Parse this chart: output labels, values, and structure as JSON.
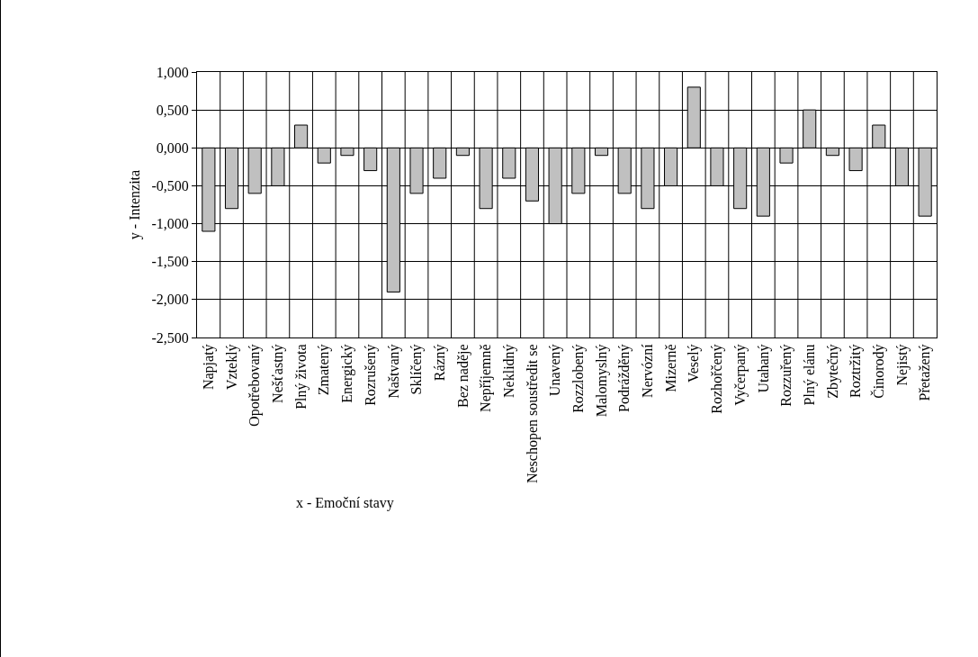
{
  "chart_data": {
    "type": "bar",
    "xlabel": "x - Emoční stavy",
    "ylabel": "y - Intenzita",
    "categories": [
      "Napjatý",
      "Vzteklý",
      "Opotřebovaný",
      "Nešťastný",
      "Plný života",
      "Zmatený",
      "Energický",
      "Rozrušený",
      "Naštvaný",
      "Sklíčený",
      "Rázný",
      "Bez naděje",
      "Nepříjemně",
      "Neklidný",
      "Neschopen soustředit se",
      "Unavený",
      "Rozzlobený",
      "Malomyslný",
      "Podrážděný",
      "Nervózní",
      "Mizerně",
      "Veselý",
      "Rozhořčený",
      "Vyčerpaný",
      "Utahaný",
      "Rozzuřený",
      "Plný elánu",
      "Zbytečný",
      "Roztržitý",
      "Činorodý",
      "Nejistý",
      "Přetažený"
    ],
    "values": [
      -1.1,
      -0.8,
      -0.6,
      -0.5,
      0.3,
      -0.2,
      -0.1,
      -0.3,
      -1.9,
      -0.6,
      -0.4,
      -0.1,
      -0.8,
      -0.4,
      -0.7,
      -1.0,
      -0.6,
      -0.1,
      -0.6,
      -0.8,
      -0.5,
      0.8,
      -0.5,
      -0.8,
      -0.9,
      -0.2,
      0.5,
      -0.1,
      -0.3,
      0.3,
      -0.5,
      -0.9
    ],
    "color": "#c0c0c0",
    "ylim": [
      -2.5,
      1
    ],
    "yticks": [
      {
        "value": -2.5,
        "label": "-2,500"
      },
      {
        "value": -2,
        "label": "-2,000"
      },
      {
        "value": -1.5,
        "label": "-1,500"
      },
      {
        "value": -1,
        "label": "-1,000"
      },
      {
        "value": -0.5,
        "label": "-0,500"
      },
      {
        "value": 0,
        "label": "0,000"
      },
      {
        "value": 0.5,
        "label": "0,500"
      },
      {
        "value": 1,
        "label": "1,000"
      }
    ],
    "grid": true
  }
}
